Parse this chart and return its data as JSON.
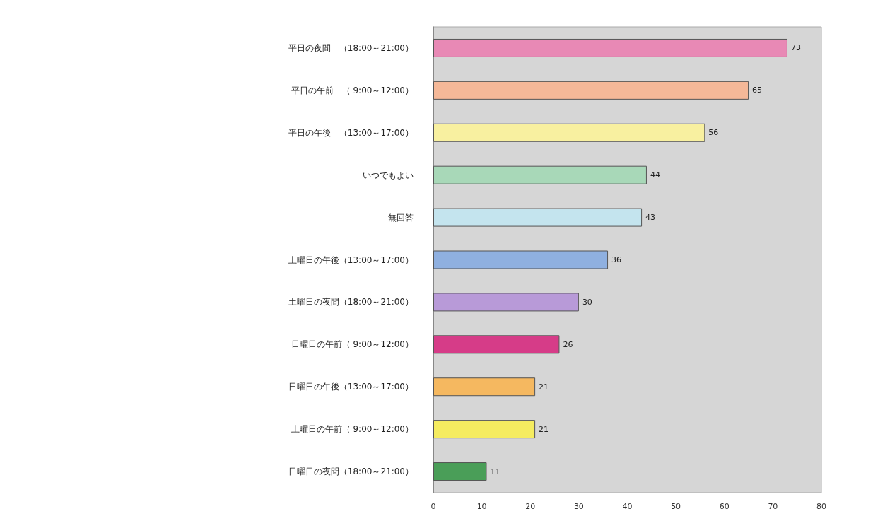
{
  "chart_data": {
    "type": "bar",
    "orientation": "horizontal",
    "categories": [
      "平日の夜間　（18:00～21:00）",
      "平日の午前　（ 9:00～12:00）",
      "平日の午後　（13:00～17:00）",
      "いつでもよい",
      "無回答",
      "土曜日の午後（13:00～17:00）",
      "土曜日の夜間（18:00～21:00）",
      "日曜日の午前（ 9:00～12:00）",
      "日曜日の午後（13:00～17:00）",
      "土曜日の午前（ 9:00～12:00）",
      "日曜日の夜間（18:00～21:00）"
    ],
    "values": [
      73,
      65,
      56,
      44,
      43,
      36,
      30,
      26,
      21,
      21,
      11
    ],
    "colors": [
      "#e889b5",
      "#f5b898",
      "#f8f0a0",
      "#a8d8b8",
      "#c4e4ee",
      "#8fb0e0",
      "#b89ad8",
      "#d63c88",
      "#f5b860",
      "#f5ec60",
      "#4a9e58"
    ],
    "xlim": [
      0,
      80
    ],
    "xticks": [
      0,
      10,
      20,
      30,
      40,
      50,
      60,
      70,
      80
    ],
    "data_labels": true
  }
}
